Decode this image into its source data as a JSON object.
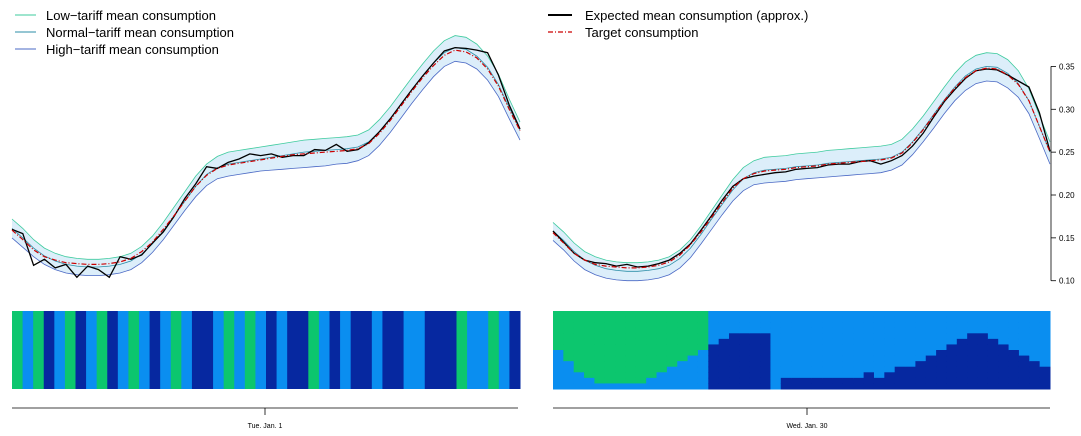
{
  "colors": {
    "low": "#3ecb9e",
    "normal": "#2b8ea7",
    "high": "#4a68c4",
    "band": "#dceefa",
    "expected": "#000000",
    "target": "#cc0000",
    "tile_green": "#0cc66e",
    "tile_light": "#0a8ef0",
    "tile_dark": "#0628a0"
  },
  "legend_left": [
    {
      "label": "Low−tariff mean consumption",
      "color": "#3ecb9e"
    },
    {
      "label": "Normal−tariff mean consumption",
      "color": "#2b8ea7"
    },
    {
      "label": "High−tariff mean consumption",
      "color": "#4a68c4"
    }
  ],
  "legend_right": [
    {
      "label": "Expected mean consumption (approx.)",
      "style": "solid",
      "color": "#000000"
    },
    {
      "label": "Target consumption",
      "style": "dashdot",
      "color": "#cc0000"
    }
  ],
  "chart_data": [
    {
      "type": "line",
      "title": "",
      "xlabel": "Tue. Jan. 1",
      "ylabel": "",
      "ylim": [
        0.095,
        0.375
      ],
      "x_points": 48,
      "series": [
        {
          "name": "Low−tariff mean consumption",
          "values": [
            0.172,
            0.161,
            0.148,
            0.138,
            0.132,
            0.128,
            0.126,
            0.125,
            0.125,
            0.126,
            0.128,
            0.132,
            0.14,
            0.152,
            0.168,
            0.186,
            0.204,
            0.222,
            0.236,
            0.245,
            0.25,
            0.252,
            0.254,
            0.256,
            0.258,
            0.26,
            0.262,
            0.264,
            0.265,
            0.266,
            0.267,
            0.268,
            0.27,
            0.276,
            0.288,
            0.303,
            0.32,
            0.337,
            0.353,
            0.368,
            0.38,
            0.386,
            0.384,
            0.376,
            0.362,
            0.341,
            0.312,
            0.285
          ]
        },
        {
          "name": "Normal−tariff mean consumption",
          "values": [
            0.161,
            0.15,
            0.138,
            0.129,
            0.123,
            0.119,
            0.117,
            0.116,
            0.116,
            0.117,
            0.119,
            0.123,
            0.131,
            0.143,
            0.158,
            0.176,
            0.193,
            0.21,
            0.224,
            0.232,
            0.236,
            0.238,
            0.24,
            0.242,
            0.244,
            0.246,
            0.248,
            0.25,
            0.251,
            0.252,
            0.253,
            0.254,
            0.256,
            0.262,
            0.274,
            0.289,
            0.306,
            0.323,
            0.339,
            0.354,
            0.366,
            0.372,
            0.37,
            0.362,
            0.349,
            0.329,
            0.302,
            0.276
          ]
        },
        {
          "name": "High−tariff mean consumption",
          "values": [
            0.15,
            0.139,
            0.128,
            0.119,
            0.113,
            0.109,
            0.107,
            0.106,
            0.106,
            0.107,
            0.109,
            0.113,
            0.121,
            0.133,
            0.148,
            0.165,
            0.182,
            0.198,
            0.211,
            0.219,
            0.222,
            0.224,
            0.226,
            0.228,
            0.229,
            0.23,
            0.231,
            0.232,
            0.233,
            0.234,
            0.236,
            0.237,
            0.24,
            0.246,
            0.258,
            0.273,
            0.29,
            0.307,
            0.323,
            0.338,
            0.35,
            0.356,
            0.354,
            0.347,
            0.334,
            0.315,
            0.289,
            0.264
          ]
        },
        {
          "name": "Expected mean consumption (approx.)",
          "values": [
            0.16,
            0.155,
            0.118,
            0.125,
            0.115,
            0.119,
            0.104,
            0.117,
            0.113,
            0.104,
            0.128,
            0.125,
            0.13,
            0.144,
            0.157,
            0.175,
            0.196,
            0.213,
            0.233,
            0.231,
            0.238,
            0.242,
            0.248,
            0.246,
            0.248,
            0.244,
            0.246,
            0.246,
            0.253,
            0.252,
            0.259,
            0.251,
            0.253,
            0.261,
            0.274,
            0.289,
            0.306,
            0.323,
            0.339,
            0.354,
            0.368,
            0.372,
            0.371,
            0.369,
            0.366,
            0.34,
            0.305,
            0.277
          ]
        },
        {
          "name": "Target consumption",
          "values": [
            0.159,
            0.148,
            0.136,
            0.128,
            0.124,
            0.121,
            0.12,
            0.119,
            0.119,
            0.12,
            0.122,
            0.126,
            0.134,
            0.145,
            0.16,
            0.176,
            0.193,
            0.21,
            0.223,
            0.231,
            0.235,
            0.237,
            0.239,
            0.241,
            0.243,
            0.245,
            0.247,
            0.248,
            0.249,
            0.25,
            0.251,
            0.252,
            0.254,
            0.26,
            0.272,
            0.287,
            0.304,
            0.321,
            0.337,
            0.351,
            0.363,
            0.369,
            0.367,
            0.36,
            0.347,
            0.327,
            0.3,
            0.275
          ]
        }
      ],
      "tariff_tiles": [
        0,
        1,
        0,
        2,
        1,
        0,
        2,
        1,
        0,
        2,
        1,
        0,
        1,
        2,
        1,
        0,
        1,
        2,
        2,
        1,
        0,
        1,
        0,
        1,
        2,
        1,
        2,
        2,
        0,
        1,
        2,
        1,
        2,
        2,
        1,
        2,
        2,
        1,
        1,
        2,
        2,
        2,
        0,
        1,
        1,
        0,
        1,
        2
      ]
    },
    {
      "type": "line",
      "title": "",
      "xlabel": "Wed. Jan. 30",
      "ylabel": "",
      "ylim": [
        0.095,
        0.375
      ],
      "yticks": [
        0.1,
        0.15,
        0.2,
        0.25,
        0.3,
        0.35
      ],
      "ytick_labels": [
        "0.10",
        "0.15",
        "0.20",
        "0.25",
        "0.30",
        "0.35"
      ],
      "x_points": 48,
      "series": [
        {
          "name": "Low−tariff mean consumption",
          "values": [
            0.168,
            0.157,
            0.144,
            0.134,
            0.128,
            0.124,
            0.122,
            0.121,
            0.121,
            0.122,
            0.124,
            0.128,
            0.136,
            0.148,
            0.164,
            0.182,
            0.2,
            0.218,
            0.232,
            0.24,
            0.244,
            0.245,
            0.246,
            0.248,
            0.249,
            0.25,
            0.252,
            0.253,
            0.254,
            0.255,
            0.256,
            0.257,
            0.259,
            0.265,
            0.277,
            0.292,
            0.309,
            0.326,
            0.342,
            0.355,
            0.363,
            0.366,
            0.365,
            0.358,
            0.345,
            0.324,
            0.293,
            0.262
          ]
        },
        {
          "name": "Normal−tariff mean consumption",
          "values": [
            0.158,
            0.147,
            0.134,
            0.124,
            0.118,
            0.114,
            0.112,
            0.111,
            0.111,
            0.112,
            0.114,
            0.118,
            0.126,
            0.138,
            0.154,
            0.172,
            0.189,
            0.206,
            0.219,
            0.226,
            0.229,
            0.23,
            0.231,
            0.233,
            0.234,
            0.235,
            0.237,
            0.238,
            0.239,
            0.24,
            0.241,
            0.242,
            0.244,
            0.25,
            0.262,
            0.277,
            0.294,
            0.311,
            0.326,
            0.339,
            0.347,
            0.35,
            0.349,
            0.342,
            0.33,
            0.31,
            0.28,
            0.25
          ]
        },
        {
          "name": "High−tariff mean consumption",
          "values": [
            0.147,
            0.136,
            0.123,
            0.113,
            0.107,
            0.103,
            0.101,
            0.1,
            0.1,
            0.101,
            0.103,
            0.107,
            0.115,
            0.127,
            0.143,
            0.16,
            0.177,
            0.193,
            0.205,
            0.212,
            0.214,
            0.215,
            0.216,
            0.218,
            0.219,
            0.22,
            0.221,
            0.222,
            0.223,
            0.224,
            0.225,
            0.226,
            0.229,
            0.235,
            0.247,
            0.262,
            0.278,
            0.295,
            0.31,
            0.322,
            0.33,
            0.333,
            0.332,
            0.325,
            0.314,
            0.295,
            0.266,
            0.236
          ]
        },
        {
          "name": "Expected mean consumption (approx.)",
          "values": [
            0.158,
            0.145,
            0.132,
            0.124,
            0.121,
            0.12,
            0.117,
            0.119,
            0.116,
            0.117,
            0.12,
            0.124,
            0.132,
            0.143,
            0.159,
            0.176,
            0.194,
            0.21,
            0.219,
            0.222,
            0.224,
            0.226,
            0.227,
            0.23,
            0.231,
            0.232,
            0.235,
            0.236,
            0.236,
            0.239,
            0.24,
            0.236,
            0.24,
            0.246,
            0.257,
            0.272,
            0.291,
            0.309,
            0.323,
            0.336,
            0.345,
            0.347,
            0.346,
            0.34,
            0.333,
            0.326,
            0.296,
            0.251
          ]
        },
        {
          "name": "Target consumption",
          "values": [
            0.156,
            0.144,
            0.132,
            0.124,
            0.119,
            0.117,
            0.116,
            0.115,
            0.115,
            0.116,
            0.118,
            0.122,
            0.13,
            0.142,
            0.157,
            0.174,
            0.191,
            0.208,
            0.219,
            0.225,
            0.228,
            0.229,
            0.23,
            0.232,
            0.233,
            0.234,
            0.236,
            0.237,
            0.238,
            0.239,
            0.24,
            0.241,
            0.243,
            0.249,
            0.261,
            0.276,
            0.293,
            0.31,
            0.325,
            0.337,
            0.345,
            0.348,
            0.347,
            0.34,
            0.329,
            0.31,
            0.28,
            0.25
          ]
        }
      ],
      "tariff_levels": [
        7,
        9,
        11,
        12,
        13,
        13,
        13,
        13,
        13,
        12,
        11,
        10,
        9,
        8,
        7,
        6,
        5,
        4,
        4,
        4,
        4,
        13,
        12,
        12,
        12,
        12,
        12,
        12,
        12,
        12,
        11,
        12,
        11,
        10,
        10,
        9,
        8,
        7,
        6,
        5,
        4,
        4,
        5,
        6,
        7,
        8,
        9,
        10
      ]
    }
  ]
}
